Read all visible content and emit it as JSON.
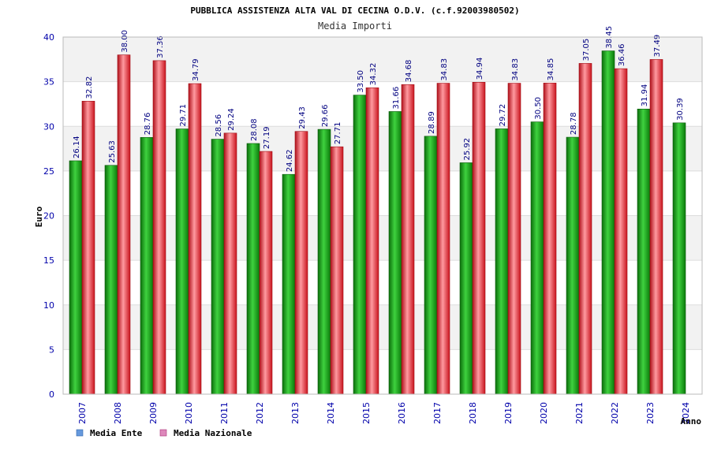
{
  "chart_data": {
    "type": "bar",
    "title": "PUBBLICA ASSISTENZA ALTA VAL DI CECINA O.D.V. (c.f.92003980502)",
    "subtitle": "Media Importi",
    "xlabel": "Anno",
    "ylabel": "Euro",
    "ylim": [
      0,
      40
    ],
    "yticks": [
      0,
      5,
      10,
      15,
      20,
      25,
      30,
      35,
      40
    ],
    "grid": true,
    "legend_position": "bottom-left",
    "categories": [
      "2007",
      "2008",
      "2009",
      "2010",
      "2011",
      "2012",
      "2013",
      "2014",
      "2015",
      "2016",
      "2017",
      "2018",
      "2019",
      "2020",
      "2021",
      "2022",
      "2023",
      "2024"
    ],
    "series": [
      {
        "name": "Media Ente",
        "color": "#1aa61a",
        "legend_color": "#6699dd",
        "values": [
          26.14,
          25.63,
          28.76,
          29.71,
          28.56,
          28.08,
          24.62,
          29.66,
          33.5,
          31.66,
          28.89,
          25.92,
          29.72,
          30.5,
          28.78,
          38.45,
          31.94,
          30.39
        ],
        "labels": [
          "26.14",
          "25.63",
          "28.76",
          "29.71",
          "28.56",
          "28.08",
          "24.62",
          "29.66",
          "33.50",
          "31.66",
          "28.89",
          "25.92",
          "29.72",
          "30.50",
          "28.78",
          "38.45",
          "31.94",
          "30.39"
        ]
      },
      {
        "name": "Media Nazionale",
        "color": "#e8262a",
        "legend_color": "#dd88bb",
        "values": [
          32.82,
          38.0,
          37.36,
          34.79,
          29.24,
          27.19,
          29.43,
          27.71,
          34.32,
          34.68,
          34.83,
          34.94,
          34.83,
          34.85,
          37.05,
          36.46,
          37.49,
          null
        ],
        "labels": [
          "32.82",
          "38.00",
          "37.36",
          "34.79",
          "29.24",
          "27.19",
          "29.43",
          "27.71",
          "34.32",
          "34.68",
          "34.83",
          "34.94",
          "34.83",
          "34.85",
          "37.05",
          "36.46",
          "37.49",
          ""
        ]
      }
    ]
  }
}
